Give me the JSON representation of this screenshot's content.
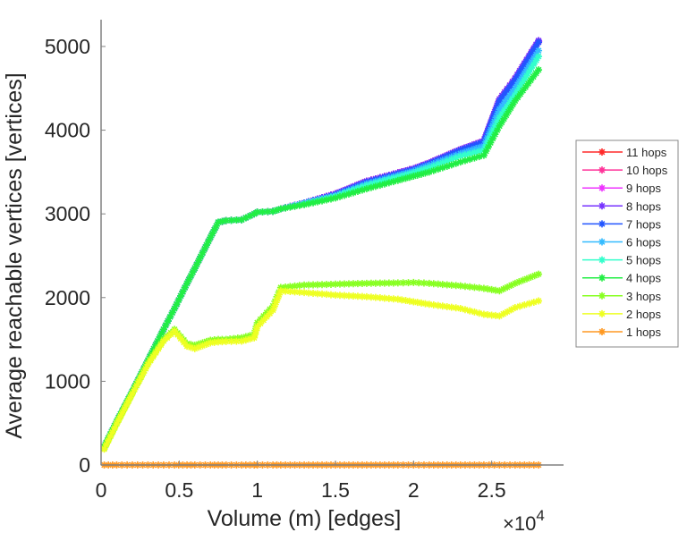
{
  "chart_data": {
    "type": "line",
    "title": "",
    "xlabel": "Volume (m) [edges]",
    "ylabel": "Average reachable vertices [vertices]",
    "x_multiplier_label": "×10",
    "x_multiplier_exp": "4",
    "xlim": [
      0,
      2.96
    ],
    "ylim": [
      0,
      5320
    ],
    "xticks": [
      0,
      0.5,
      1,
      1.5,
      2,
      2.5
    ],
    "xtick_labels": [
      "0",
      "0.5",
      "1",
      "1.5",
      "2",
      "2.5"
    ],
    "yticks": [
      0,
      1000,
      2000,
      3000,
      4000,
      5000
    ],
    "ytick_labels": [
      "0",
      "1000",
      "2000",
      "3000",
      "4000",
      "5000"
    ],
    "grid": false,
    "legend_position": "outside-right",
    "x": [
      0.02,
      0.1,
      0.2,
      0.3,
      0.4,
      0.47,
      0.55,
      0.6,
      0.7,
      0.75,
      0.8,
      0.9,
      0.98,
      1.0,
      1.1,
      1.15,
      1.3,
      1.5,
      1.7,
      1.9,
      2.0,
      2.1,
      2.3,
      2.45,
      2.55,
      2.65,
      2.8
    ],
    "series": [
      {
        "name": "11 hops",
        "color": "#ff2a2a",
        "values": [
          220,
          520,
          880,
          1250,
          1620,
          1870,
          2170,
          2350,
          2720,
          2900,
          2920,
          2930,
          3000,
          3020,
          3030,
          3060,
          3130,
          3240,
          3390,
          3490,
          3540,
          3610,
          3770,
          3870,
          4370,
          4620,
          5060
        ]
      },
      {
        "name": "10 hops",
        "color": "#ff3399",
        "values": [
          220,
          520,
          880,
          1250,
          1620,
          1870,
          2170,
          2350,
          2720,
          2900,
          2920,
          2930,
          3000,
          3020,
          3030,
          3060,
          3130,
          3240,
          3390,
          3490,
          3540,
          3610,
          3770,
          3870,
          4370,
          4620,
          5060
        ]
      },
      {
        "name": "9 hops",
        "color": "#ee33ff",
        "values": [
          220,
          520,
          880,
          1250,
          1620,
          1870,
          2170,
          2350,
          2720,
          2900,
          2920,
          2930,
          3000,
          3020,
          3030,
          3060,
          3130,
          3240,
          3390,
          3490,
          3540,
          3610,
          3770,
          3870,
          4370,
          4620,
          5060
        ]
      },
      {
        "name": "8 hops",
        "color": "#7733ff",
        "values": [
          220,
          520,
          880,
          1250,
          1620,
          1870,
          2170,
          2350,
          2720,
          2900,
          2920,
          2930,
          3000,
          3020,
          3030,
          3060,
          3130,
          3240,
          3390,
          3490,
          3540,
          3610,
          3770,
          3870,
          4370,
          4620,
          5070
        ]
      },
      {
        "name": "7 hops",
        "color": "#2255ff",
        "values": [
          220,
          520,
          880,
          1250,
          1620,
          1870,
          2170,
          2350,
          2720,
          2900,
          2920,
          2930,
          3000,
          3020,
          3030,
          3060,
          3130,
          3230,
          3380,
          3480,
          3530,
          3600,
          3760,
          3860,
          4350,
          4600,
          5050
        ]
      },
      {
        "name": "6 hops",
        "color": "#33bbff",
        "values": [
          220,
          520,
          880,
          1250,
          1620,
          1870,
          2170,
          2350,
          2720,
          2900,
          2920,
          2930,
          3000,
          3020,
          3030,
          3060,
          3125,
          3220,
          3360,
          3460,
          3510,
          3580,
          3720,
          3810,
          4250,
          4500,
          4950
        ]
      },
      {
        "name": "5 hops",
        "color": "#33ffcc",
        "values": [
          220,
          520,
          880,
          1250,
          1620,
          1870,
          2170,
          2350,
          2720,
          2900,
          2920,
          2930,
          3000,
          3020,
          3030,
          3060,
          3120,
          3210,
          3340,
          3440,
          3490,
          3550,
          3690,
          3760,
          4150,
          4420,
          4880
        ]
      },
      {
        "name": "4 hops",
        "color": "#22ee44",
        "values": [
          220,
          520,
          880,
          1250,
          1620,
          1870,
          2170,
          2350,
          2720,
          2900,
          2920,
          2930,
          3000,
          3020,
          3030,
          3060,
          3110,
          3190,
          3300,
          3400,
          3450,
          3500,
          3620,
          3700,
          4050,
          4350,
          4720
        ]
      },
      {
        "name": "3 hops",
        "color": "#88ff22",
        "values": [
          200,
          500,
          860,
          1220,
          1500,
          1620,
          1450,
          1430,
          1490,
          1500,
          1500,
          1520,
          1560,
          1700,
          1900,
          2120,
          2150,
          2160,
          2170,
          2175,
          2180,
          2170,
          2140,
          2110,
          2080,
          2170,
          2280
        ]
      },
      {
        "name": "2 hops",
        "color": "#eeff22",
        "values": [
          190,
          490,
          850,
          1200,
          1480,
          1600,
          1420,
          1390,
          1460,
          1470,
          1475,
          1480,
          1520,
          1650,
          1850,
          2080,
          2060,
          2030,
          2010,
          1980,
          1950,
          1920,
          1870,
          1800,
          1780,
          1880,
          1960
        ]
      },
      {
        "name": "1 hops",
        "color": "#ff9922",
        "values": [
          0,
          0,
          0,
          0,
          0,
          0,
          0,
          0,
          0,
          0,
          0,
          0,
          0,
          0,
          0,
          0,
          0,
          0,
          0,
          0,
          0,
          0,
          0,
          0,
          0,
          0,
          0
        ]
      }
    ]
  }
}
